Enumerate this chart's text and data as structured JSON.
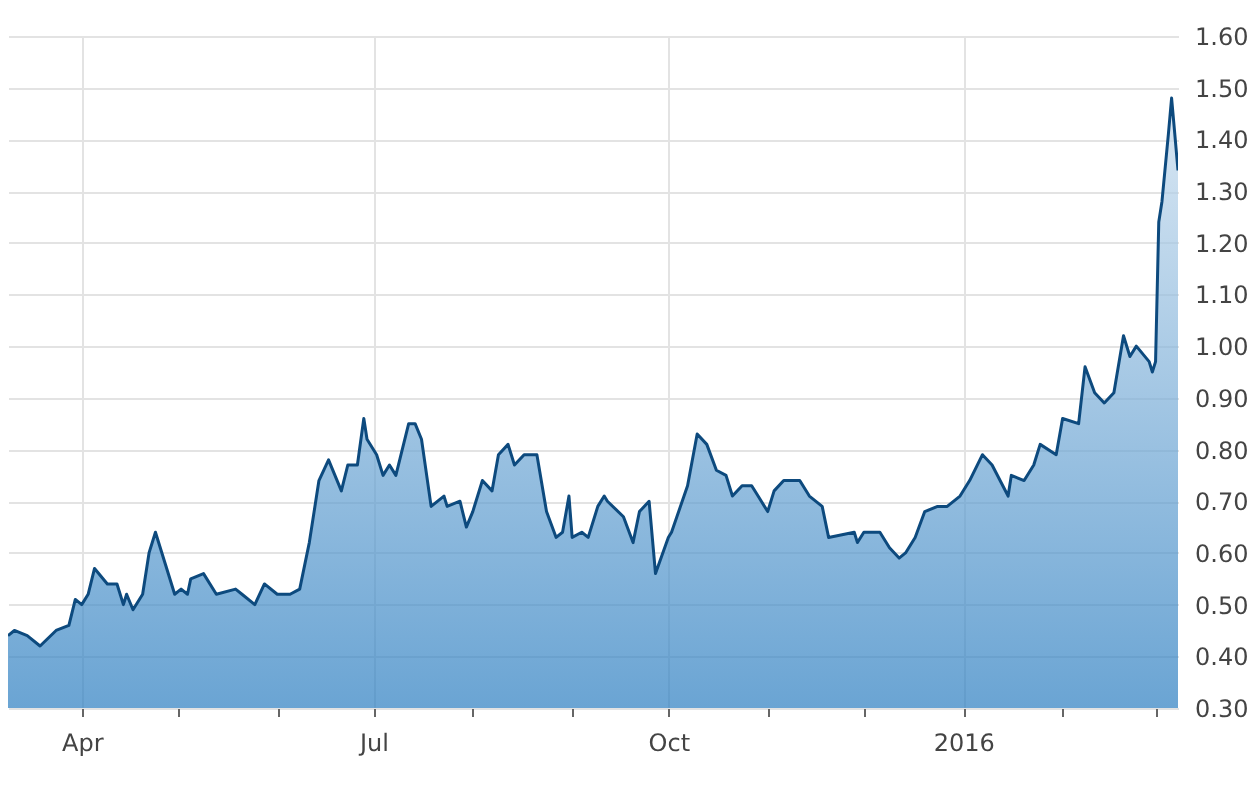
{
  "chart_data": {
    "type": "area",
    "x": [
      "2015-03-09",
      "2015-03-11",
      "2015-03-15",
      "2015-03-19",
      "2015-03-24",
      "2015-03-28",
      "2015-03-30",
      "2015-04-01",
      "2015-04-03",
      "2015-04-05",
      "2015-04-09",
      "2015-04-12",
      "2015-04-14",
      "2015-04-15",
      "2015-04-17",
      "2015-04-20",
      "2015-04-22",
      "2015-04-24",
      "2015-04-27",
      "2015-04-30",
      "2015-05-02",
      "2015-05-04",
      "2015-05-05",
      "2015-05-09",
      "2015-05-13",
      "2015-05-19",
      "2015-05-21",
      "2015-05-25",
      "2015-05-28",
      "2015-06-01",
      "2015-06-05",
      "2015-06-08",
      "2015-06-11",
      "2015-06-14",
      "2015-06-17",
      "2015-06-21",
      "2015-06-23",
      "2015-06-26",
      "2015-06-28",
      "2015-06-29",
      "2015-07-02",
      "2015-07-04",
      "2015-07-06",
      "2015-07-08",
      "2015-07-12",
      "2015-07-14",
      "2015-07-16",
      "2015-07-19",
      "2015-07-23",
      "2015-07-24",
      "2015-07-28",
      "2015-07-30",
      "2015-08-01",
      "2015-08-04",
      "2015-08-07",
      "2015-08-09",
      "2015-08-12",
      "2015-08-14",
      "2015-08-17",
      "2015-08-21",
      "2015-08-24",
      "2015-08-27",
      "2015-08-29",
      "2015-08-31",
      "2015-09-01",
      "2015-09-04",
      "2015-09-06",
      "2015-09-09",
      "2015-09-11",
      "2015-09-12",
      "2015-09-17",
      "2015-09-20",
      "2015-09-22",
      "2015-09-25",
      "2015-09-27",
      "2015-10-01",
      "2015-10-02",
      "2015-10-07",
      "2015-10-10",
      "2015-10-13",
      "2015-10-16",
      "2015-10-19",
      "2015-10-21",
      "2015-10-24",
      "2015-10-27",
      "2015-10-29",
      "2015-11-01",
      "2015-11-03",
      "2015-11-06",
      "2015-11-11",
      "2015-11-14",
      "2015-11-18",
      "2015-11-20",
      "2015-11-28",
      "2015-11-29",
      "2015-12-01",
      "2015-12-06",
      "2015-12-09",
      "2015-12-12",
      "2015-12-14",
      "2015-12-17",
      "2015-12-20",
      "2015-12-24",
      "2015-12-27",
      "2015-12-31",
      "2016-01-03",
      "2016-01-07",
      "2016-01-10",
      "2016-01-15",
      "2016-01-16",
      "2016-01-20",
      "2016-01-23",
      "2016-01-25",
      "2016-01-30",
      "2016-02-01",
      "2016-02-06",
      "2016-02-08",
      "2016-02-11",
      "2016-02-14",
      "2016-02-17",
      "2016-02-20",
      "2016-02-22",
      "2016-02-24",
      "2016-02-28",
      "2016-02-29",
      "2016-03-01",
      "2016-03-02",
      "2016-03-03",
      "2016-03-05",
      "2016-03-06",
      "2016-03-07",
      "2016-03-08"
    ],
    "series": [
      {
        "color": "#0d4a7e",
        "values": [
          0.44,
          0.45,
          0.44,
          0.42,
          0.45,
          0.46,
          0.51,
          0.5,
          0.52,
          0.57,
          0.54,
          0.54,
          0.5,
          0.52,
          0.49,
          0.52,
          0.6,
          0.64,
          0.58,
          0.52,
          0.53,
          0.52,
          0.55,
          0.56,
          0.52,
          0.53,
          0.52,
          0.5,
          0.54,
          0.52,
          0.52,
          0.53,
          0.62,
          0.74,
          0.78,
          0.72,
          0.77,
          0.77,
          0.86,
          0.82,
          0.79,
          0.75,
          0.77,
          0.75,
          0.85,
          0.85,
          0.82,
          0.69,
          0.71,
          0.69,
          0.7,
          0.65,
          0.68,
          0.74,
          0.72,
          0.79,
          0.81,
          0.77,
          0.79,
          0.79,
          0.68,
          0.63,
          0.64,
          0.71,
          0.63,
          0.64,
          0.63,
          0.69,
          0.71,
          0.7,
          0.67,
          0.62,
          0.68,
          0.7,
          0.56,
          0.63,
          0.64,
          0.73,
          0.83,
          0.81,
          0.76,
          0.75,
          0.71,
          0.73,
          0.73,
          0.71,
          0.68,
          0.72,
          0.74,
          0.74,
          0.71,
          0.69,
          0.63,
          0.64,
          0.62,
          0.64,
          0.64,
          0.61,
          0.59,
          0.6,
          0.63,
          0.68,
          0.69,
          0.69,
          0.71,
          0.74,
          0.79,
          0.77,
          0.71,
          0.75,
          0.74,
          0.77,
          0.81,
          0.79,
          0.86,
          0.85,
          0.96,
          0.91,
          0.89,
          0.91,
          1.02,
          0.98,
          1.0,
          0.97,
          0.95,
          0.97,
          1.24,
          1.28,
          1.41,
          1.48,
          1.41,
          1.34
        ]
      }
    ],
    "xlim": [
      "2015-03-09",
      "2016-03-08"
    ],
    "xticks": [
      {
        "value": "2015-04-01",
        "label": "Apr"
      },
      {
        "value": "2015-05-01",
        "label": null
      },
      {
        "value": "2015-06-01",
        "label": null
      },
      {
        "value": "2015-07-01",
        "label": "Jul"
      },
      {
        "value": "2015-08-01",
        "label": null
      },
      {
        "value": "2015-09-01",
        "label": null
      },
      {
        "value": "2015-10-01",
        "label": "Oct"
      },
      {
        "value": "2015-11-01",
        "label": null
      },
      {
        "value": "2015-12-01",
        "label": null
      },
      {
        "value": "2016-01-01",
        "label": "2016"
      },
      {
        "value": "2016-02-01",
        "label": null
      },
      {
        "value": "2016-03-01",
        "label": null
      }
    ],
    "ylim": [
      0.3,
      1.6
    ],
    "yticks": [
      {
        "value": 0.3,
        "label": "0.30"
      },
      {
        "value": 0.4,
        "label": "0.40"
      },
      {
        "value": 0.5,
        "label": "0.50"
      },
      {
        "value": 0.6,
        "label": "0.60"
      },
      {
        "value": 0.7,
        "label": "0.70"
      },
      {
        "value": 0.8,
        "label": "0.80"
      },
      {
        "value": 0.9,
        "label": "0.90"
      },
      {
        "value": 1.0,
        "label": "1.00"
      },
      {
        "value": 1.1,
        "label": "1.10"
      },
      {
        "value": 1.2,
        "label": "1.20"
      },
      {
        "value": 1.3,
        "label": "1.30"
      },
      {
        "value": 1.4,
        "label": "1.40"
      },
      {
        "value": 1.5,
        "label": "1.50"
      },
      {
        "value": 1.6,
        "label": "1.60"
      }
    ],
    "grid": true
  }
}
